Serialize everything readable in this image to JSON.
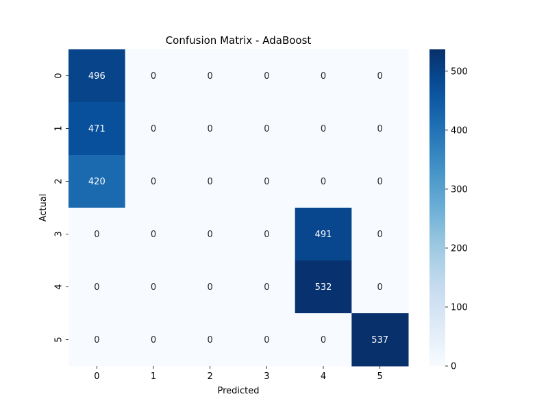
{
  "chart_data": {
    "type": "heatmap",
    "title": "Confusion Matrix - AdaBoost",
    "xlabel": "Predicted",
    "ylabel": "Actual",
    "x_categories": [
      "0",
      "1",
      "2",
      "3",
      "4",
      "5"
    ],
    "y_categories": [
      "0",
      "1",
      "2",
      "3",
      "4",
      "5"
    ],
    "values": [
      [
        496,
        0,
        0,
        0,
        0,
        0
      ],
      [
        471,
        0,
        0,
        0,
        0,
        0
      ],
      [
        420,
        0,
        0,
        0,
        0,
        0
      ],
      [
        0,
        0,
        0,
        0,
        491,
        0
      ],
      [
        0,
        0,
        0,
        0,
        532,
        0
      ],
      [
        0,
        0,
        0,
        0,
        0,
        537
      ]
    ],
    "colormap": "Blues",
    "value_range": [
      0,
      537
    ],
    "colorbar_ticks": [
      0,
      100,
      200,
      300,
      400,
      500
    ],
    "colorbar_tick_labels": [
      "0",
      "100",
      "200",
      "300",
      "400",
      "500"
    ],
    "grid": false,
    "colorbar_position": "right"
  }
}
